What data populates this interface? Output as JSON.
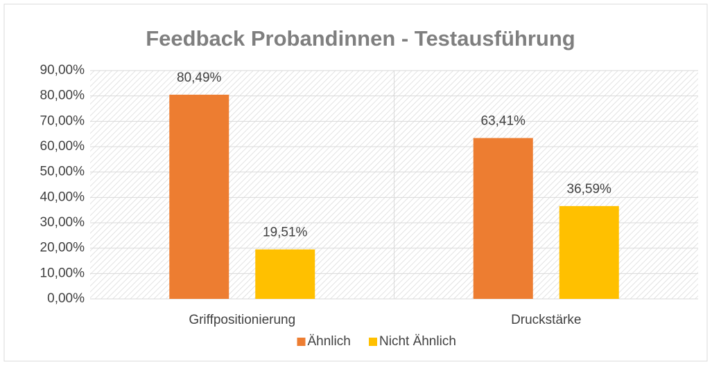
{
  "chart_data": {
    "type": "bar",
    "title": "Feedback Probandinnen - Testausführung",
    "categories": [
      "Griffpositionierung",
      "Druckstärke"
    ],
    "series": [
      {
        "name": "Ähnlich",
        "color": "#ed7d31",
        "values": [
          80.49,
          63.41
        ],
        "value_labels": [
          "80,49%",
          "63,41%"
        ]
      },
      {
        "name": "Nicht Ähnlich",
        "color": "#ffc000",
        "values": [
          19.51,
          36.59
        ],
        "value_labels": [
          "19,51%",
          "36,59%"
        ]
      }
    ],
    "ylim": [
      0,
      90
    ],
    "yticks": [
      {
        "value": 0,
        "label": "0,00%"
      },
      {
        "value": 10,
        "label": "10,00%"
      },
      {
        "value": 20,
        "label": "20,00%"
      },
      {
        "value": 30,
        "label": "30,00%"
      },
      {
        "value": 40,
        "label": "40,00%"
      },
      {
        "value": 50,
        "label": "50,00%"
      },
      {
        "value": 60,
        "label": "60,00%"
      },
      {
        "value": 70,
        "label": "70,00%"
      },
      {
        "value": 80,
        "label": "80,00%"
      },
      {
        "value": 90,
        "label": "90,00%"
      }
    ],
    "grid": true,
    "legend": "bottom"
  }
}
